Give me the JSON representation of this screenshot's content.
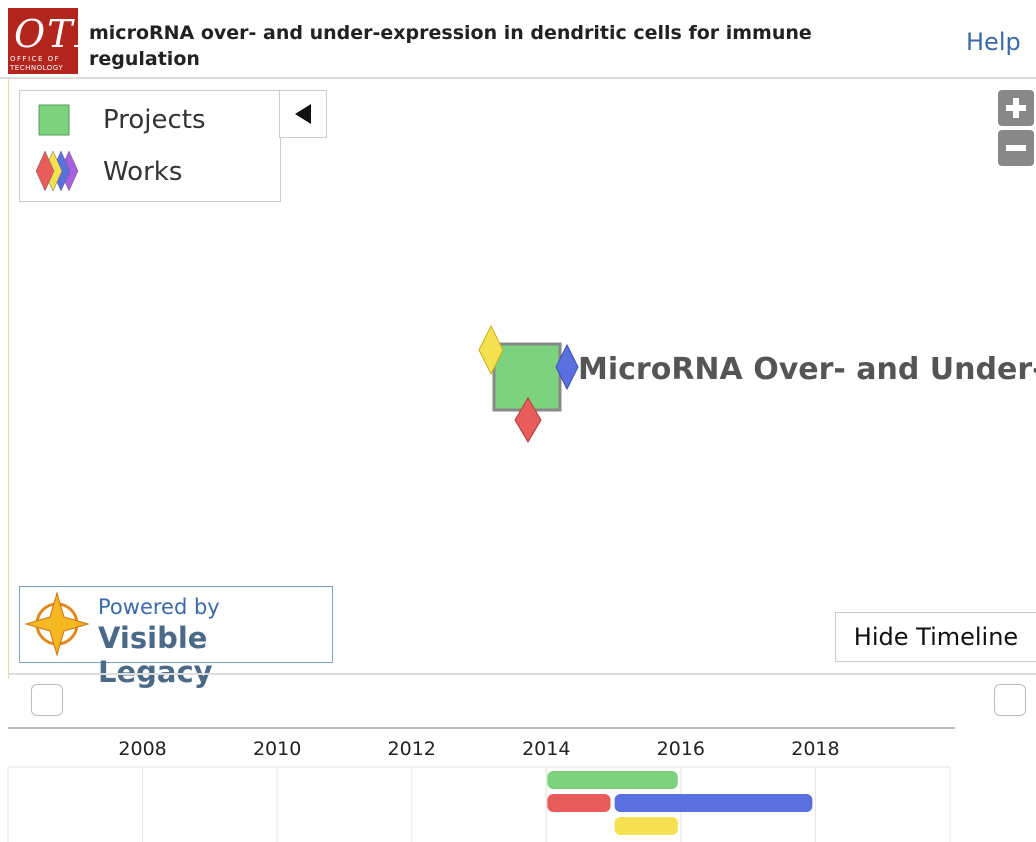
{
  "header": {
    "logo": {
      "letters": "OTL",
      "caption_top": "OFFICE OF",
      "caption_bottom": "TECHNOLOGY"
    },
    "title": "microRNA over- and under-expression in dendritic cells for immune regulation",
    "help": "Help"
  },
  "legend": {
    "items": [
      {
        "label": "Projects",
        "color": "#7dd37d"
      },
      {
        "label": "Works",
        "colors": [
          "#e85c5c",
          "#f5e050",
          "#5a6fe0",
          "#a85ee0"
        ]
      }
    ]
  },
  "map": {
    "node_label": "MicroRNA Over- and Under-"
  },
  "powered": {
    "line1": "Powered by",
    "line2": "Visible Legacy"
  },
  "hide_timeline": "Hide Timeline",
  "chart_data": {
    "type": "timeline",
    "xlim": [
      2006,
      2020
    ],
    "xticks": [
      2008,
      2010,
      2012,
      2014,
      2016,
      2018
    ],
    "rows": [
      [
        {
          "start": 2014,
          "end": 2016,
          "color": "#7dd37d"
        }
      ],
      [
        {
          "start": 2014,
          "end": 2015,
          "color": "#e85c5c"
        },
        {
          "start": 2015,
          "end": 2018,
          "color": "#5a6fe0"
        }
      ],
      [
        {
          "start": 2015,
          "end": 2016,
          "color": "#f5e050"
        }
      ]
    ]
  }
}
